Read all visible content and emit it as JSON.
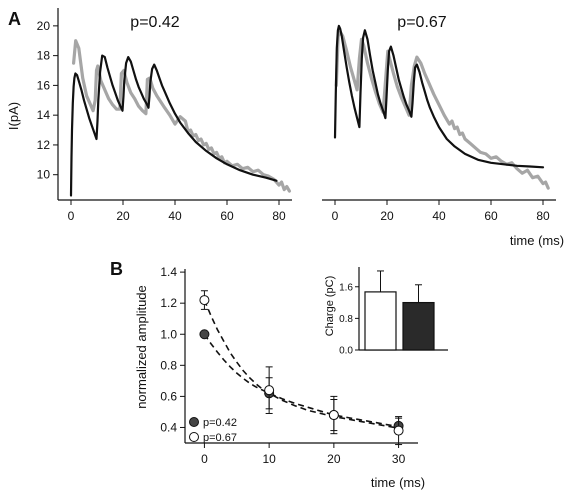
{
  "figure": {
    "panel_a_letter": "A",
    "panel_b_letter": "B"
  },
  "chart_data": [
    {
      "type": "line",
      "title": "p=0.42",
      "ylabel": "I(pA)",
      "xlabel": "",
      "xlim": [
        -5,
        85
      ],
      "ylim": [
        8.3,
        21.2
      ],
      "x_ticks": [
        0,
        20,
        40,
        60,
        80
      ],
      "y_ticks": [
        10,
        12,
        14,
        16,
        18,
        20
      ],
      "series": [
        {
          "role": "recorded",
          "color": "#a6a6a6",
          "x": [
            1,
            1.8,
            3,
            4.5,
            6,
            7.5,
            8.5,
            9.3,
            9.8,
            10.3,
            11.5,
            13,
            14.5,
            16,
            17.5,
            18.8,
            19.4,
            20.3,
            21.5,
            23,
            24.5,
            26,
            27.5,
            28.8,
            29.4,
            30.3,
            31.5,
            33,
            34.5,
            36,
            38,
            40,
            42,
            44,
            45,
            46,
            47,
            48,
            49,
            50,
            51,
            52,
            53,
            54,
            55,
            56,
            57,
            58,
            59,
            60,
            62,
            64,
            66,
            68,
            70,
            72,
            74,
            76,
            78,
            80,
            81,
            82,
            83,
            84
          ],
          "y": [
            17.5,
            19.0,
            18.5,
            16.5,
            15.3,
            14.7,
            14.3,
            15.0,
            17.0,
            17.3,
            16.3,
            15.7,
            15.1,
            14.7,
            14.4,
            14.4,
            16.8,
            17.0,
            16.2,
            15.5,
            15.1,
            14.6,
            14.3,
            14.1,
            16.4,
            16.5,
            15.8,
            15.3,
            14.9,
            14.5,
            14.0,
            13.4,
            13.9,
            13.6,
            12.9,
            13.0,
            12.6,
            12.7,
            12.3,
            12.4,
            12.0,
            12.1,
            11.7,
            11.8,
            11.4,
            11.5,
            11.1,
            11.2,
            10.8,
            10.9,
            10.6,
            10.7,
            10.4,
            10.5,
            10.2,
            10.3,
            10.0,
            9.9,
            9.7,
            9.3,
            9.5,
            9.0,
            9.2,
            8.9
          ]
        },
        {
          "role": "model fit",
          "color": "#111111",
          "x": [
            0,
            0.2,
            0.4,
            0.7,
            1,
            1.3,
            1.7,
            2.3,
            3,
            4,
            5,
            6,
            7,
            8,
            9,
            9.8,
            10.2,
            10.5,
            11.2,
            12,
            13,
            14,
            15,
            16,
            17,
            18,
            19,
            19.8,
            20.2,
            20.5,
            21.2,
            22,
            23,
            24,
            25,
            26,
            27,
            28,
            29,
            29.8,
            30.2,
            30.5,
            31.2,
            32,
            33,
            34,
            35,
            36,
            37,
            38,
            40,
            42,
            45,
            48,
            52,
            56,
            60,
            65,
            70,
            75,
            79
          ],
          "y": [
            8.6,
            11.2,
            13.0,
            14.8,
            15.9,
            16.5,
            16.8,
            16.7,
            16.3,
            15.7,
            15.0,
            14.4,
            13.8,
            13.3,
            12.8,
            12.4,
            13.6,
            15.0,
            16.9,
            18.0,
            17.9,
            17.2,
            16.6,
            16.0,
            15.5,
            15.0,
            14.6,
            14.3,
            15.3,
            16.3,
            17.5,
            17.9,
            17.6,
            17.0,
            16.4,
            15.9,
            15.5,
            15.1,
            14.8,
            14.5,
            15.3,
            16.2,
            17.1,
            17.4,
            17.0,
            16.5,
            16.0,
            15.6,
            15.2,
            14.8,
            14.1,
            13.5,
            12.8,
            12.2,
            11.6,
            11.1,
            10.7,
            10.3,
            10.0,
            9.8,
            9.6
          ]
        }
      ]
    },
    {
      "type": "line",
      "title": "p=0.67",
      "xlabel": "time (ms)",
      "ylabel": "",
      "xlim": [
        -5,
        85
      ],
      "ylim": [
        8.3,
        21.2
      ],
      "x_ticks": [
        0,
        20,
        40,
        60,
        80
      ],
      "series": [
        {
          "role": "recorded",
          "color": "#a6a6a6",
          "x": [
            0.5,
            1.2,
            2,
            3,
            4.5,
            6,
            7.5,
            8.5,
            9.4,
            10.2,
            11,
            12.5,
            14,
            15.5,
            17,
            18.5,
            19.4,
            20.3,
            21,
            22.5,
            24,
            25.5,
            27,
            28.5,
            29.4,
            30.5,
            31.5,
            33,
            34.5,
            36,
            38,
            40,
            42,
            44,
            45,
            46,
            47,
            48,
            49,
            50,
            52,
            54,
            56,
            58,
            60,
            62,
            64,
            66,
            68,
            70,
            72,
            74,
            76,
            78,
            80,
            81,
            82
          ],
          "y": [
            16.0,
            19.3,
            19.6,
            19.3,
            18.3,
            17.2,
            16.3,
            15.7,
            17.8,
            19.1,
            18.7,
            17.5,
            16.5,
            15.6,
            14.8,
            14.2,
            16.2,
            18.3,
            17.8,
            16.8,
            15.9,
            15.2,
            14.6,
            14.0,
            16.0,
            17.3,
            17.9,
            17.5,
            16.8,
            16.2,
            15.4,
            14.7,
            14.0,
            13.4,
            13.6,
            13.1,
            13.2,
            12.7,
            12.8,
            12.4,
            12.1,
            11.8,
            11.5,
            11.4,
            11.1,
            11.2,
            10.9,
            10.7,
            10.8,
            10.4,
            10.1,
            10.3,
            9.8,
            9.9,
            9.4,
            9.5,
            9.1
          ]
        },
        {
          "role": "model fit",
          "color": "#111111",
          "x": [
            0,
            0.3,
            0.7,
            1.1,
            1.5,
            2,
            2.6,
            3.5,
            4.5,
            5.5,
            6.5,
            7.5,
            8.5,
            9.4,
            9.8,
            10.3,
            10.8,
            11.5,
            12.5,
            13.5,
            14.5,
            15.5,
            16.5,
            17.5,
            18.5,
            19.4,
            19.8,
            20.3,
            20.8,
            21.5,
            22.5,
            23.5,
            24.5,
            25.5,
            26.5,
            27.5,
            28.5,
            29.4,
            29.8,
            30.3,
            30.8,
            31.5,
            32.5,
            33.5,
            34.5,
            35.5,
            36.5,
            38,
            40,
            43,
            46,
            50,
            55,
            60,
            65,
            70,
            75,
            80
          ],
          "y": [
            12.5,
            15.5,
            18.5,
            19.7,
            20.0,
            19.8,
            19.3,
            18.3,
            17.2,
            16.2,
            15.3,
            14.5,
            13.8,
            13.2,
            15.5,
            17.8,
            19.2,
            19.7,
            19.1,
            18.0,
            17.0,
            16.2,
            15.4,
            14.8,
            14.3,
            13.8,
            15.2,
            17.0,
            18.3,
            18.6,
            18.0,
            17.2,
            16.4,
            15.8,
            15.2,
            14.7,
            14.3,
            13.9,
            14.8,
            16.2,
            17.2,
            17.4,
            16.9,
            16.2,
            15.6,
            15.0,
            14.5,
            13.9,
            13.2,
            12.4,
            11.9,
            11.4,
            11.0,
            10.8,
            10.7,
            10.6,
            10.55,
            10.5
          ]
        }
      ]
    },
    {
      "type": "scatter",
      "xlabel": "time (ms)",
      "ylabel": "normalized amplitude",
      "xlim": [
        -3,
        33
      ],
      "ylim": [
        0.3,
        1.42
      ],
      "x_ticks": [
        0,
        10,
        20,
        30
      ],
      "y_ticks": [
        0.4,
        0.6,
        0.8,
        1.0,
        1.2,
        1.4
      ],
      "series": [
        {
          "name": "p=0.42",
          "color": "#444444",
          "marker": "filled circle",
          "x": [
            0,
            10,
            20,
            30
          ],
          "y": [
            1.0,
            0.62,
            0.48,
            0.41
          ],
          "err": [
            0.0,
            0.1,
            0.1,
            0.05
          ],
          "fit": {
            "x": [
              0,
              1,
              2,
              3,
              4,
              5,
              6,
              7,
              8,
              9,
              10,
              12,
              14,
              16,
              18,
              20,
              22,
              24,
              26,
              28,
              30
            ],
            "y": [
              1.0,
              0.94,
              0.885,
              0.835,
              0.79,
              0.75,
              0.715,
              0.685,
              0.66,
              0.64,
              0.62,
              0.585,
              0.555,
              0.53,
              0.505,
              0.48,
              0.465,
              0.45,
              0.435,
              0.42,
              0.405
            ]
          }
        },
        {
          "name": "p=0.67",
          "color": "#ffffff",
          "marker": "open circle",
          "x": [
            0,
            10,
            20,
            30
          ],
          "y": [
            1.22,
            0.64,
            0.48,
            0.38
          ],
          "err": [
            0.06,
            0.15,
            0.12,
            0.09
          ],
          "fit": {
            "x": [
              0,
              1,
              2,
              3,
              4,
              5,
              6,
              7,
              8,
              9,
              10,
              12,
              14,
              16,
              18,
              20,
              22,
              24,
              26,
              28,
              30
            ],
            "y": [
              1.22,
              1.12,
              1.03,
              0.955,
              0.88,
              0.82,
              0.765,
              0.72,
              0.68,
              0.645,
              0.62,
              0.575,
              0.54,
              0.51,
              0.49,
              0.47,
              0.455,
              0.44,
              0.425,
              0.41,
              0.395
            ]
          }
        }
      ],
      "legend_position": "bottom-left",
      "inset": {
        "type": "bar",
        "ylabel": "Charge (pC)",
        "ylim": [
          0,
          2.1
        ],
        "y_ticks": [
          "0.0",
          "0.8",
          "1.6"
        ],
        "bars": [
          {
            "name": "p=0.67",
            "value": 1.47,
            "err": 0.53,
            "fill": "#ffffff"
          },
          {
            "name": "p=0.42",
            "value": 1.2,
            "err": 0.45,
            "fill": "#2a2a2a"
          }
        ]
      }
    }
  ]
}
